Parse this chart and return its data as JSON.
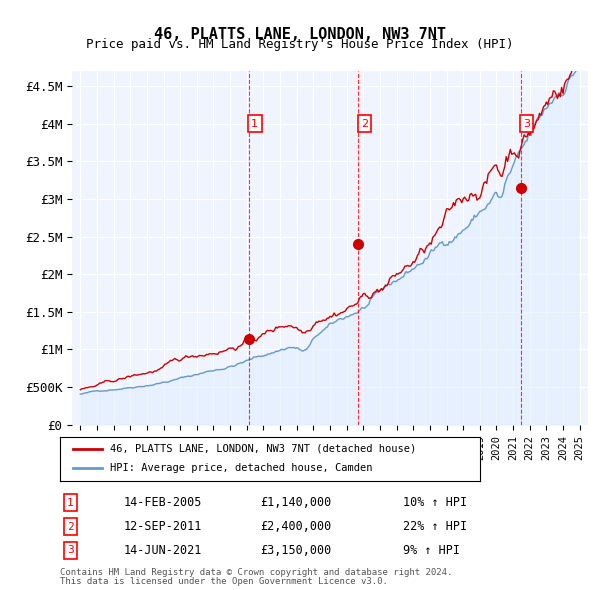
{
  "title": "46, PLATTS LANE, LONDON, NW3 7NT",
  "subtitle": "Price paid vs. HM Land Registry's House Price Index (HPI)",
  "footer1": "Contains HM Land Registry data © Crown copyright and database right 2024.",
  "footer2": "This data is licensed under the Open Government Licence v3.0.",
  "legend_property": "46, PLATTS LANE, LONDON, NW3 7NT (detached house)",
  "legend_hpi": "HPI: Average price, detached house, Camden",
  "property_color": "#cc0000",
  "hpi_color": "#6699cc",
  "hpi_fill_color": "#ddeeff",
  "background_color": "#f0f4ff",
  "purchases": [
    {
      "label": "1",
      "date_str": "14-FEB-2005",
      "price": 1140000,
      "pct": "10%",
      "dir": "↑",
      "x": 2005.12
    },
    {
      "label": "2",
      "date_str": "12-SEP-2011",
      "price": 2400000,
      "pct": "22%",
      "dir": "↑",
      "x": 2011.71
    },
    {
      "label": "3",
      "date_str": "14-JUN-2021",
      "price": 3150000,
      "pct": "9%",
      "dir": "↑",
      "x": 2021.45
    }
  ],
  "ylim": [
    0,
    4700000
  ],
  "yticks": [
    0,
    500000,
    1000000,
    1500000,
    2000000,
    2500000,
    3000000,
    3500000,
    4000000,
    4500000
  ],
  "ytick_labels": [
    "£0",
    "£500K",
    "£1M",
    "£1.5M",
    "£2M",
    "£2.5M",
    "£3M",
    "£3.5M",
    "£4M",
    "£4.5M"
  ],
  "xlim": [
    1994.5,
    2025.5
  ]
}
